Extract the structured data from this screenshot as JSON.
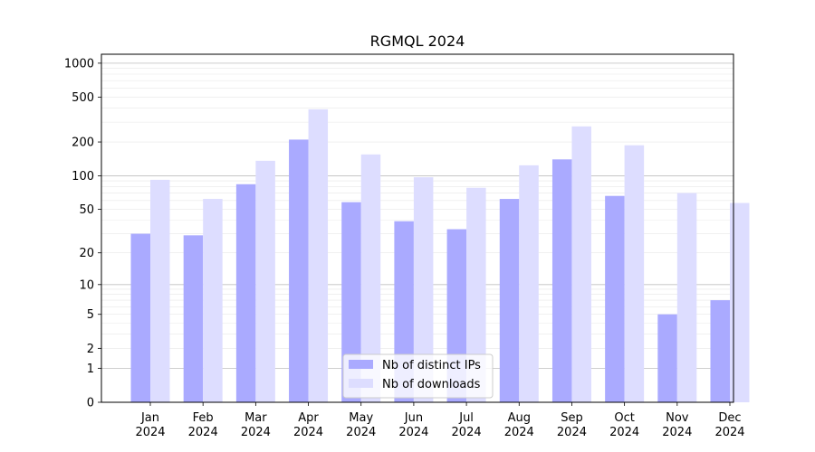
{
  "chart_data": {
    "type": "bar",
    "title": "RGMQL 2024",
    "xlabel": "",
    "ylabel": "",
    "y_scale": "log(1 + y)",
    "ylim": [
      0,
      1200
    ],
    "y_ticks": [
      0,
      1,
      2,
      5,
      10,
      20,
      50,
      100,
      200,
      500,
      1000
    ],
    "grid": "horizontal",
    "legend_position": "bottom-center",
    "categories": [
      [
        "Jan",
        "2024"
      ],
      [
        "Feb",
        "2024"
      ],
      [
        "Mar",
        "2024"
      ],
      [
        "Apr",
        "2024"
      ],
      [
        "May",
        "2024"
      ],
      [
        "Jun",
        "2024"
      ],
      [
        "Jul",
        "2024"
      ],
      [
        "Aug",
        "2024"
      ],
      [
        "Sep",
        "2024"
      ],
      [
        "Oct",
        "2024"
      ],
      [
        "Nov",
        "2024"
      ],
      [
        "Dec",
        "2024"
      ]
    ],
    "series": [
      {
        "name": "Nb of distinct IPs",
        "color": "#aaaaff",
        "values": [
          30,
          29,
          84,
          210,
          58,
          39,
          33,
          62,
          140,
          66,
          5,
          7
        ]
      },
      {
        "name": "Nb of downloads",
        "color": "#ddddff",
        "values": [
          92,
          62,
          136,
          390,
          155,
          97,
          78,
          124,
          275,
          187,
          70,
          57
        ]
      }
    ]
  }
}
